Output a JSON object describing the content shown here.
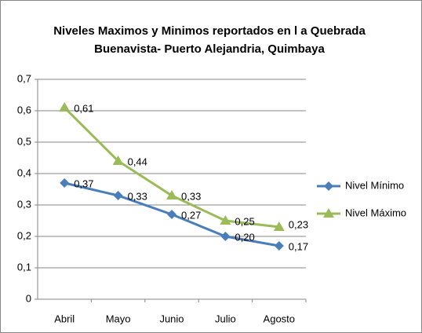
{
  "chart_data": {
    "type": "line",
    "title": [
      "Niveles Maximos y Minimos  reportados  en l a Quebrada",
      "Buenavista- Puerto  Alejandria, Quimbaya"
    ],
    "categories": [
      "Abril",
      "Mayo",
      "Junio",
      "Julio",
      "Agosto"
    ],
    "series": [
      {
        "name": "Nivel Mínimo",
        "color": "#4a7ebb",
        "marker": "diamond",
        "values": [
          0.37,
          0.33,
          0.27,
          0.2,
          0.17
        ],
        "value_labels": [
          "0,37",
          "0,33",
          "0,27",
          "0,20",
          "0,17"
        ]
      },
      {
        "name": "Nivel Máximo",
        "color": "#9bbb59",
        "marker": "triangle",
        "values": [
          0.61,
          0.44,
          0.33,
          0.25,
          0.23
        ],
        "value_labels": [
          "0,61",
          "0,44",
          "0,33",
          "0,25",
          "0,23"
        ]
      }
    ],
    "ylim": [
      0,
      0.7
    ],
    "yticks": [
      0,
      {
        "value": 0.1,
        "label": "0,1"
      },
      {
        "value": 0.2,
        "label": "0,2"
      },
      {
        "value": 0.3,
        "label": "0,3"
      },
      {
        "value": 0.4,
        "label": "0,4"
      },
      {
        "value": 0.5,
        "label": "0,5"
      },
      {
        "value": 0.6,
        "label": "0,6"
      },
      {
        "value": 0.7,
        "label": "0,7"
      }
    ],
    "grid": true,
    "legend": "right"
  }
}
